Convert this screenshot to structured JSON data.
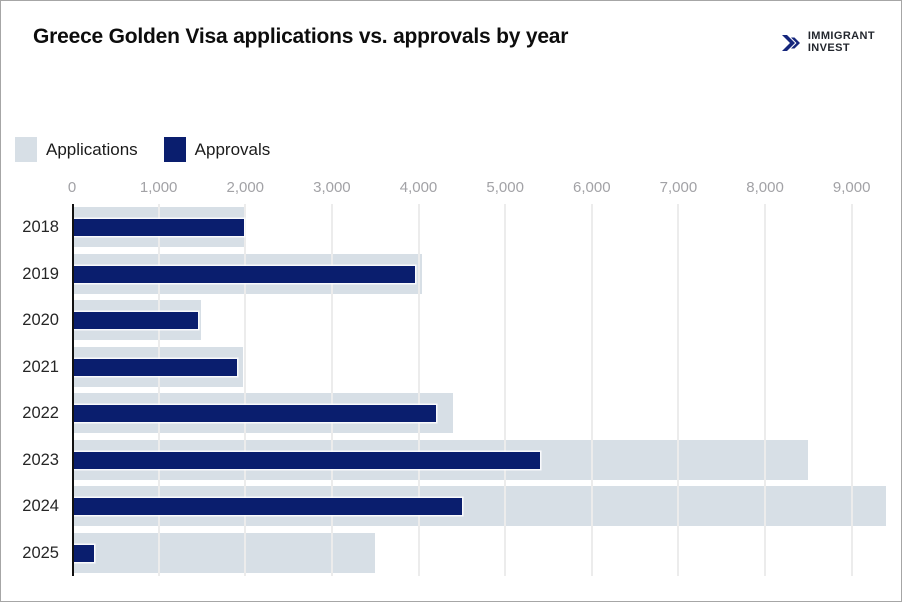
{
  "header": {
    "title": "Greece Golden Visa applications vs. approvals by year",
    "logo": {
      "line1": "IMMIGRANT",
      "line2": "INVEST",
      "icon_color": "#15267c"
    }
  },
  "chart_data": {
    "type": "bar",
    "orientation": "horizontal",
    "title": "Greece Golden Visa applications vs. approvals by year",
    "categories": [
      "2018",
      "2019",
      "2020",
      "2021",
      "2022",
      "2023",
      "2024",
      "2025"
    ],
    "series": [
      {
        "name": "Applications",
        "color": "#d7dfe6",
        "values": [
          2000,
          4040,
          1490,
          1975,
          4400,
          8500,
          9400,
          3500
        ]
      },
      {
        "name": "Approvals",
        "color": "#0a1e6e",
        "values": [
          1980,
          3960,
          1450,
          1900,
          4200,
          5400,
          4500,
          250
        ]
      }
    ],
    "x_ticks": [
      0,
      1000,
      2000,
      3000,
      4000,
      5000,
      6000,
      7000,
      8000,
      9000
    ],
    "x_tick_labels": [
      "0",
      "1,000",
      "2,000",
      "3,000",
      "4,000",
      "5,000",
      "6,000",
      "7,000",
      "8,000",
      "9,000"
    ],
    "xlim": [
      0,
      9500
    ],
    "xlabel": "",
    "ylabel": "",
    "grid": "vertical",
    "legend_position": "top-left",
    "colors": {
      "grid": "#ececec",
      "axis": "#111111",
      "tick_text": "#a2a2a6",
      "year_text": "#262626"
    }
  }
}
